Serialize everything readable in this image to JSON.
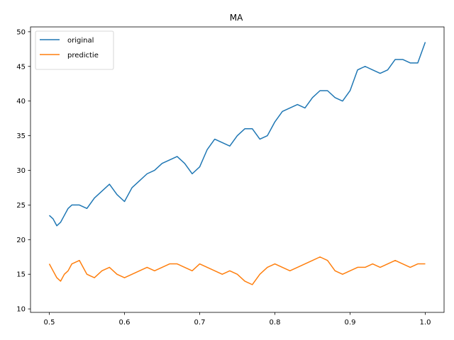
{
  "chart_data": {
    "type": "line",
    "title": "MA",
    "xlabel": "",
    "ylabel": "",
    "xlim": [
      0.475,
      1.025
    ],
    "ylim": [
      9.5,
      50.7
    ],
    "xticks": [
      0.5,
      0.6,
      0.7,
      0.8,
      0.9,
      1.0
    ],
    "xtick_labels": [
      "0.5",
      "0.6",
      "0.7",
      "0.8",
      "0.9",
      "1.0"
    ],
    "yticks": [
      10,
      15,
      20,
      25,
      30,
      35,
      40,
      45,
      50
    ],
    "ytick_labels": [
      "10",
      "15",
      "20",
      "25",
      "30",
      "35",
      "40",
      "45",
      "50"
    ],
    "grid": false,
    "legend_position": "top-left",
    "series": [
      {
        "name": "original",
        "color": "#1f77b4",
        "x": [
          0.5,
          0.505,
          0.51,
          0.515,
          0.52,
          0.525,
          0.53,
          0.54,
          0.55,
          0.56,
          0.57,
          0.58,
          0.59,
          0.6,
          0.61,
          0.62,
          0.63,
          0.64,
          0.65,
          0.66,
          0.67,
          0.68,
          0.69,
          0.7,
          0.71,
          0.72,
          0.73,
          0.74,
          0.75,
          0.76,
          0.77,
          0.78,
          0.79,
          0.8,
          0.81,
          0.82,
          0.83,
          0.84,
          0.85,
          0.86,
          0.87,
          0.88,
          0.89,
          0.9,
          0.91,
          0.92,
          0.93,
          0.94,
          0.95,
          0.96,
          0.97,
          0.98,
          0.99,
          1.0
        ],
        "y": [
          23.5,
          23.0,
          22.0,
          22.5,
          23.5,
          24.5,
          25.0,
          25.0,
          24.5,
          26.0,
          27.0,
          28.0,
          26.5,
          25.5,
          27.5,
          28.5,
          29.5,
          30.0,
          31.0,
          31.5,
          32.0,
          31.0,
          29.5,
          30.5,
          33.0,
          34.5,
          34.0,
          33.5,
          35.0,
          36.0,
          36.0,
          34.5,
          35.0,
          37.0,
          38.5,
          39.0,
          39.5,
          39.0,
          40.5,
          41.5,
          41.5,
          40.5,
          40.0,
          41.5,
          44.5,
          45.0,
          44.5,
          44.0,
          44.5,
          46.0,
          46.0,
          45.5,
          45.5,
          48.5
        ]
      },
      {
        "name": "predictie",
        "color": "#ff7f0e",
        "x": [
          0.5,
          0.505,
          0.51,
          0.515,
          0.52,
          0.525,
          0.53,
          0.54,
          0.55,
          0.56,
          0.57,
          0.58,
          0.59,
          0.6,
          0.61,
          0.62,
          0.63,
          0.64,
          0.65,
          0.66,
          0.67,
          0.68,
          0.69,
          0.7,
          0.71,
          0.72,
          0.73,
          0.74,
          0.75,
          0.76,
          0.77,
          0.78,
          0.79,
          0.8,
          0.81,
          0.82,
          0.83,
          0.84,
          0.85,
          0.86,
          0.87,
          0.88,
          0.89,
          0.9,
          0.91,
          0.92,
          0.93,
          0.94,
          0.95,
          0.96,
          0.97,
          0.98,
          0.99,
          1.0
        ],
        "y": [
          16.5,
          15.5,
          14.5,
          14.0,
          15.0,
          15.5,
          16.5,
          17.0,
          15.0,
          14.5,
          15.5,
          16.0,
          15.0,
          14.5,
          15.0,
          15.5,
          16.0,
          15.5,
          16.0,
          16.5,
          16.5,
          16.0,
          15.5,
          16.5,
          16.0,
          15.5,
          15.0,
          15.5,
          15.0,
          14.0,
          13.5,
          15.0,
          16.0,
          16.5,
          16.0,
          15.5,
          16.0,
          16.5,
          17.0,
          17.5,
          17.0,
          15.5,
          15.0,
          15.5,
          16.0,
          16.0,
          16.5,
          16.0,
          16.5,
          17.0,
          16.5,
          16.0,
          16.5,
          16.5
        ]
      }
    ]
  }
}
